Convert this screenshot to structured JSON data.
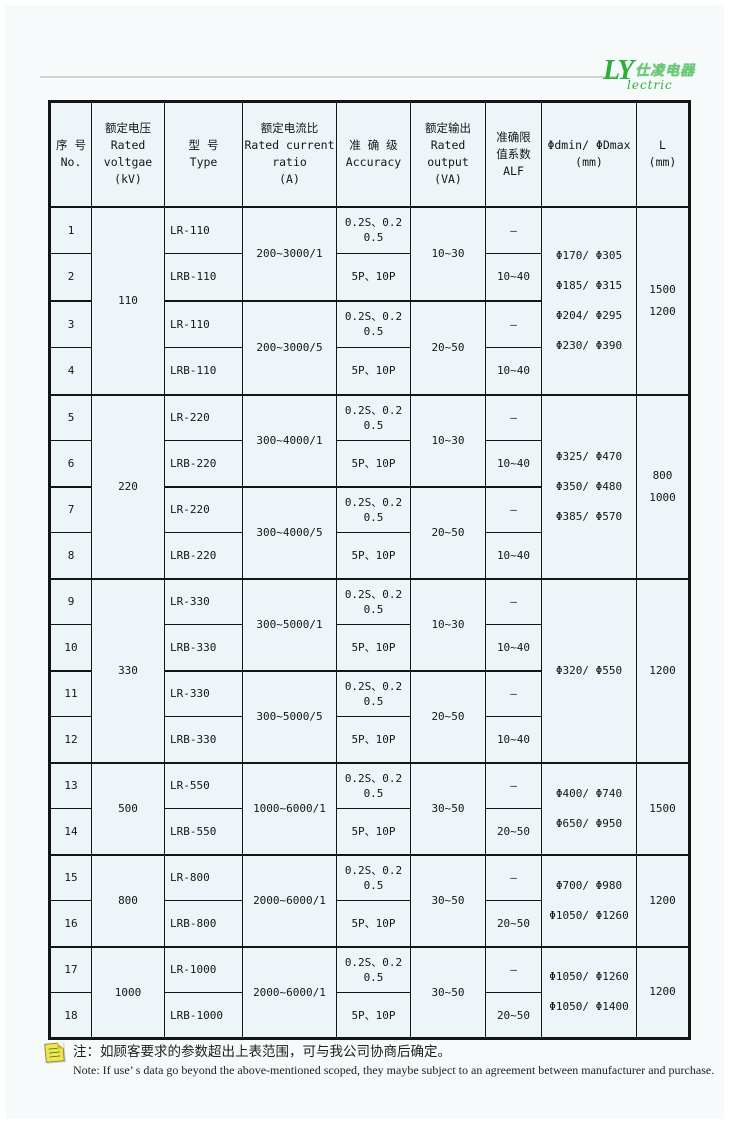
{
  "colors": {
    "accent_green": "#2fae3c",
    "table_background": "#eef5f9",
    "border": "#141414",
    "note_icon_yellow": "#f7e24e"
  },
  "logo": {
    "latin": "LY",
    "chinese": "仕凌电器",
    "script": "lectric"
  },
  "table": {
    "headers": {
      "no": "序 号\nNo.",
      "voltage": "额定电压\nRated\nvoltgae\n(kV)",
      "type": "型 号\nType",
      "ratio": "额定电流比\nRated current\nratio\n(A)",
      "accuracy": "准 确 级\nAccuracy",
      "output": "额定输出\nRated\noutput\n(VA)",
      "alf": "准确限\n值系数\nALF",
      "phi": "Φdmin/ ΦDmax\n(mm)",
      "l": "L\n(mm)"
    },
    "groups": [
      {
        "voltage": "110",
        "phi": [
          "Φ170/ Φ305",
          "Φ185/ Φ315",
          "Φ204/ Φ295",
          "Φ230/ Φ390"
        ],
        "l": "1500\n1200",
        "subgroups": [
          {
            "ratio": "200~3000/1",
            "output": "10~30",
            "rows": [
              {
                "no": "1",
                "type": "LR-110",
                "accuracy": "0.2S、0.2\n0.5",
                "alf": "—"
              },
              {
                "no": "2",
                "type": "LRB-110",
                "accuracy": "5P、10P",
                "alf": "10~40"
              }
            ]
          },
          {
            "ratio": "200~3000/5",
            "output": "20~50",
            "rows": [
              {
                "no": "3",
                "type": "LR-110",
                "accuracy": "0.2S、0.2\n0.5",
                "alf": "—"
              },
              {
                "no": "4",
                "type": "LRB-110",
                "accuracy": "5P、10P",
                "alf": "10~40"
              }
            ]
          }
        ]
      },
      {
        "voltage": "220",
        "phi": [
          "Φ325/ Φ470",
          "Φ350/ Φ480",
          "Φ385/ Φ570"
        ],
        "l": "800\n1000",
        "subgroups": [
          {
            "ratio": "300~4000/1",
            "output": "10~30",
            "rows": [
              {
                "no": "5",
                "type": "LR-220",
                "accuracy": "0.2S、0.2\n0.5",
                "alf": "—"
              },
              {
                "no": "6",
                "type": "LRB-220",
                "accuracy": "5P、10P",
                "alf": "10~40"
              }
            ]
          },
          {
            "ratio": "300~4000/5",
            "output": "20~50",
            "rows": [
              {
                "no": "7",
                "type": "LR-220",
                "accuracy": "0.2S、0.2\n0.5",
                "alf": "—"
              },
              {
                "no": "8",
                "type": "LRB-220",
                "accuracy": "5P、10P",
                "alf": "10~40"
              }
            ]
          }
        ]
      },
      {
        "voltage": "330",
        "phi": [
          "Φ320/ Φ550"
        ],
        "l": "1200",
        "subgroups": [
          {
            "ratio": "300~5000/1",
            "output": "10~30",
            "rows": [
              {
                "no": "9",
                "type": "LR-330",
                "accuracy": "0.2S、0.2\n0.5",
                "alf": "—"
              },
              {
                "no": "10",
                "type": "LRB-330",
                "accuracy": "5P、10P",
                "alf": "10~40"
              }
            ]
          },
          {
            "ratio": "300~5000/5",
            "output": "20~50",
            "rows": [
              {
                "no": "11",
                "type": "LR-330",
                "accuracy": "0.2S、0.2\n0.5",
                "alf": "—"
              },
              {
                "no": "12",
                "type": "LRB-330",
                "accuracy": "5P、10P",
                "alf": "10~40"
              }
            ]
          }
        ]
      },
      {
        "voltage": "500",
        "phi": [
          "Φ400/ Φ740",
          "Φ650/ Φ950"
        ],
        "l": "1500",
        "subgroups": [
          {
            "ratio": "1000~6000/1",
            "output": "30~50",
            "rows": [
              {
                "no": "13",
                "type": "LR-550",
                "accuracy": "0.2S、0.2\n0.5",
                "alf": "—"
              },
              {
                "no": "14",
                "type": "LRB-550",
                "accuracy": "5P、10P",
                "alf": "20~50"
              }
            ]
          }
        ]
      },
      {
        "voltage": "800",
        "phi": [
          "Φ700/ Φ980",
          "Φ1050/ Φ1260"
        ],
        "l": "1200",
        "subgroups": [
          {
            "ratio": "2000~6000/1",
            "output": "30~50",
            "rows": [
              {
                "no": "15",
                "type": "LR-800",
                "accuracy": "0.2S、0.2\n0.5",
                "alf": "—"
              },
              {
                "no": "16",
                "type": "LRB-800",
                "accuracy": "5P、10P",
                "alf": "20~50"
              }
            ]
          }
        ]
      },
      {
        "voltage": "1000",
        "phi": [
          "Φ1050/ Φ1260",
          "Φ1050/ Φ1400"
        ],
        "l": "1200",
        "subgroups": [
          {
            "ratio": "2000~6000/1",
            "output": "30~50",
            "rows": [
              {
                "no": "17",
                "type": "LR-1000",
                "accuracy": "0.2S、0.2\n0.5",
                "alf": "—"
              },
              {
                "no": "18",
                "type": "LRB-1000",
                "accuracy": "5P、10P",
                "alf": "20~50"
              }
            ]
          }
        ]
      }
    ]
  },
  "note": {
    "cn": "注：如顾客要求的参数超出上表范围，可与我公司协商后确定。",
    "en": "Note: If use’ s data go beyond the above-mentioned scoped, they maybe subject to an agreement between manufacturer and purchase."
  }
}
